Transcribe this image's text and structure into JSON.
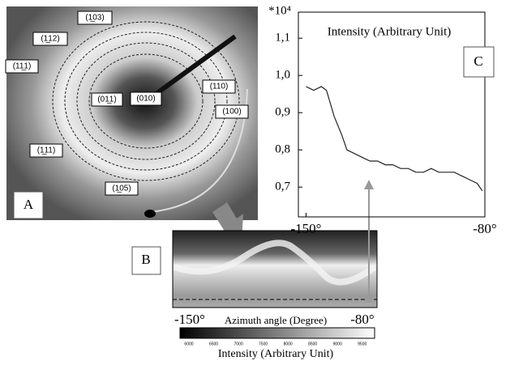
{
  "panel_a": {
    "letter": "A",
    "labels": [
      "(1̲03)",
      "(1̲12)",
      "(11̲1)",
      "(110)",
      "(100)",
      "(01̲1)",
      "(010)",
      "(1̲11)",
      "(1̲05)"
    ]
  },
  "panel_b": {
    "letter": "B",
    "x_start": "-150°",
    "x_end": "-80°",
    "xlabel": "Azimuth angle (Degree)",
    "colorbar_label": "Intensity (Arbitrary Unit)",
    "colorbar_lim": [
      5820,
      9750
    ],
    "colorbar_ticks": [
      6000,
      6500,
      7000,
      7500,
      8000,
      8500,
      9000,
      9500
    ]
  },
  "chart_data": {
    "type": "line",
    "title": "Intensity (Arbitrary Unit)",
    "annotation": "C",
    "multiplier": "*10⁴",
    "x": [
      -150,
      -147,
      -144,
      -142,
      -139,
      -136,
      -134,
      -131,
      -128,
      -125,
      -122,
      -119,
      -116,
      -113,
      -110,
      -107,
      -104,
      -101,
      -98,
      -95,
      -92,
      -89,
      -86,
      -83,
      -81
    ],
    "values": [
      0.97,
      0.96,
      0.97,
      0.96,
      0.89,
      0.84,
      0.8,
      0.79,
      0.78,
      0.77,
      0.77,
      0.76,
      0.76,
      0.75,
      0.75,
      0.74,
      0.74,
      0.75,
      0.74,
      0.74,
      0.74,
      0.73,
      0.72,
      0.71,
      0.69
    ],
    "color": "#222222",
    "xlim": [
      -153,
      -80
    ],
    "xticks": [
      {
        "value": -150,
        "label": "-150°"
      },
      {
        "value": -80,
        "label": "-80°"
      }
    ],
    "ylim": [
      0.62,
      1.17
    ],
    "yticks": [
      {
        "value": 0.7,
        "label": "0,7"
      },
      {
        "value": 0.8,
        "label": "0,8"
      },
      {
        "value": 0.9,
        "label": "0,9"
      },
      {
        "value": 1.0,
        "label": "1,0"
      },
      {
        "value": 1.1,
        "label": "1,1"
      }
    ]
  }
}
